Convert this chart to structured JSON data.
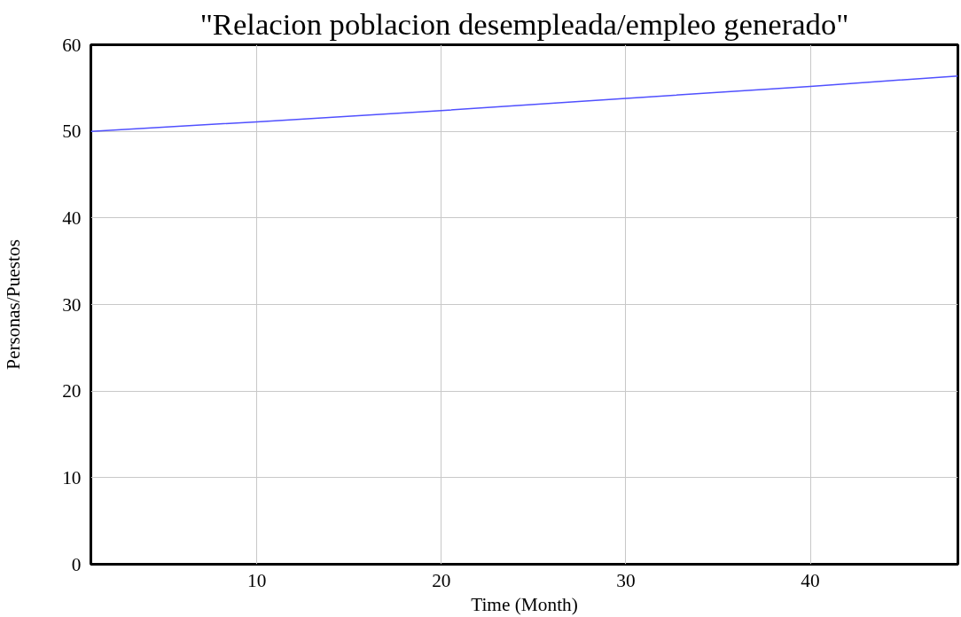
{
  "chart_data": {
    "type": "line",
    "title": "\"Relacion poblacion desempleada/empleo generado\"",
    "xlabel": "Time (Month)",
    "ylabel": "Personas/Puestos",
    "x": [
      1,
      10,
      20,
      30,
      40,
      48
    ],
    "series": [
      {
        "color": "#5050ff",
        "values": [
          50,
          51.1,
          52.4,
          53.8,
          55.2,
          56.4
        ]
      }
    ],
    "xlim": [
      1,
      48
    ],
    "xticks": [
      10,
      20,
      30,
      40
    ],
    "ylim": [
      0,
      60
    ],
    "yticks": [
      0,
      10,
      20,
      30,
      40,
      50,
      60
    ],
    "grid": true
  }
}
